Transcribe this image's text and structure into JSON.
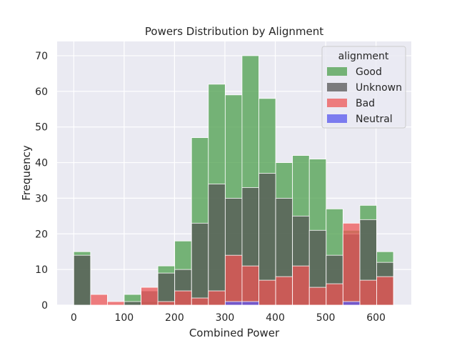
{
  "chart_data": {
    "type": "bar",
    "title": "Powers Distribution by Alignment",
    "xlabel": "Combined Power",
    "ylabel": "Frequency",
    "xlim": [
      -33,
      670
    ],
    "ylim": [
      0,
      74
    ],
    "xticks": [
      0,
      100,
      200,
      300,
      400,
      500,
      600
    ],
    "yticks": [
      0,
      10,
      20,
      30,
      40,
      50,
      60,
      70
    ],
    "grid": true,
    "legend": {
      "title": "alignment",
      "placement": "top-right"
    },
    "bin_edges": [
      0,
      33.4,
      66.8,
      100.2,
      133.6,
      167,
      200.4,
      233.8,
      267.2,
      300.6,
      334,
      367.4,
      400.8,
      434.2,
      467.6,
      501,
      534.4,
      567.8,
      601.2,
      634.6
    ],
    "series": [
      {
        "name": "Good",
        "color": "#4c9f4c",
        "opacity": 0.75,
        "values": [
          15,
          0,
          0,
          3,
          1,
          11,
          18,
          47,
          62,
          59,
          70,
          58,
          40,
          42,
          41,
          27,
          21,
          28,
          15
        ]
      },
      {
        "name": "Unknown",
        "color": "#555555",
        "opacity": 0.75,
        "values": [
          14,
          0,
          0,
          1,
          4,
          9,
          10,
          23,
          34,
          30,
          33,
          37,
          30,
          25,
          21,
          14,
          20,
          24,
          12
        ]
      },
      {
        "name": "Bad",
        "color": "#ee5555",
        "opacity": 0.75,
        "values": [
          0,
          3,
          1,
          0,
          5,
          1,
          4,
          2,
          4,
          14,
          11,
          7,
          8,
          11,
          5,
          6,
          23,
          7,
          8
        ]
      },
      {
        "name": "Neutral",
        "color": "#5555ee",
        "opacity": 0.75,
        "values": [
          0,
          0,
          0,
          0,
          0,
          0,
          0,
          0,
          0,
          1,
          1,
          0,
          0,
          0,
          0,
          0,
          1,
          0,
          0
        ]
      }
    ]
  }
}
